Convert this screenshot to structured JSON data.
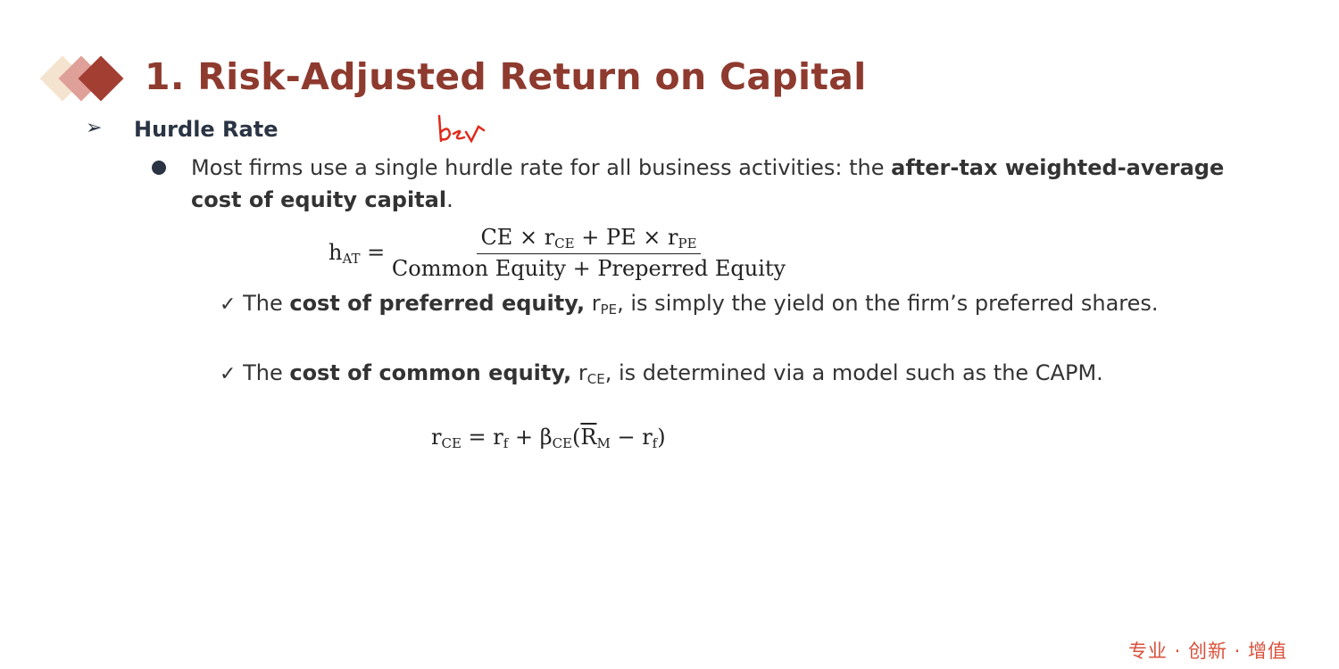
{
  "slide": {
    "title": "1. Risk-Adjusted Return on Capital",
    "heading": "Hurdle Rate",
    "annotation": "bev",
    "bullet": {
      "text_before": "Most firms use a single hurdle rate for all business activities: the ",
      "bold": "after-tax weighted-average cost of equity capital",
      "text_after": "."
    },
    "formula1": {
      "lhs": "h",
      "lhs_sub": "AT",
      "eq": "=",
      "numerator": {
        "a": "CE × r",
        "a_sub": "CE",
        "b": " + PE × r",
        "b_sub": "PE"
      },
      "denominator": "Common Equity + Preperred Equity"
    },
    "checks": [
      {
        "mark": "✓",
        "before": "The ",
        "bold": "cost of preferred equity,",
        "sym": " r",
        "sym_sub": "PE",
        "after": ", is simply the yield on the firm’s preferred shares."
      },
      {
        "mark": "✓",
        "before": "The ",
        "bold": "cost of common equity,",
        "sym": " r",
        "sym_sub": "CE",
        "after": ", is determined via a model such as the CAPM."
      }
    ],
    "formula2": {
      "r": "r",
      "r_sub": "CE",
      "eq": " = r",
      "rf_sub": "f",
      "plus": " + β",
      "beta_sub": "CE",
      "open": "(",
      "rm": "R",
      "rm_sub": "M",
      "minus": " − r",
      "rf2_sub": "f",
      "close": ")"
    },
    "footer": "专业 · 创新 · 增值",
    "colors": {
      "title": "#8e3a2e",
      "heading": "#2a3444",
      "footer": "#d9503a",
      "annotation": "#e02a1a"
    }
  }
}
